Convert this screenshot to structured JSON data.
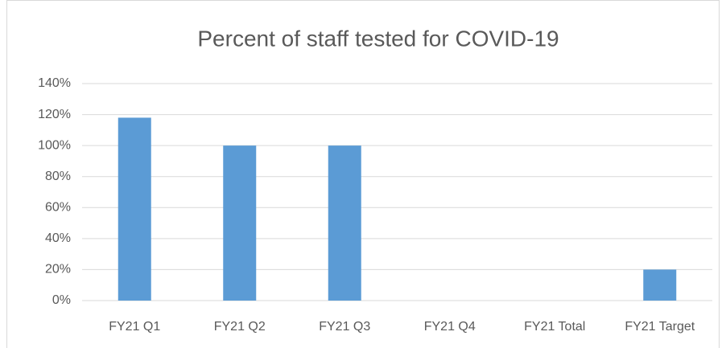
{
  "chart_data": {
    "type": "bar",
    "title": "Percent of staff tested for COVID-19",
    "categories": [
      "FY21 Q1",
      "FY21 Q2",
      "FY21 Q3",
      "FY21 Q4",
      "FY21 Total",
      "FY21 Target"
    ],
    "values": [
      118,
      100,
      100,
      null,
      null,
      20
    ],
    "color": "#5b9bd5",
    "ylim": [
      0,
      140
    ],
    "yticks": [
      {
        "value": 0,
        "label": "0%"
      },
      {
        "value": 20,
        "label": "20%"
      },
      {
        "value": 40,
        "label": "40%"
      },
      {
        "value": 60,
        "label": "60%"
      },
      {
        "value": 80,
        "label": "80%"
      },
      {
        "value": 100,
        "label": "100%"
      },
      {
        "value": 120,
        "label": "120%"
      },
      {
        "value": 140,
        "label": "140%"
      }
    ],
    "grid": true
  }
}
